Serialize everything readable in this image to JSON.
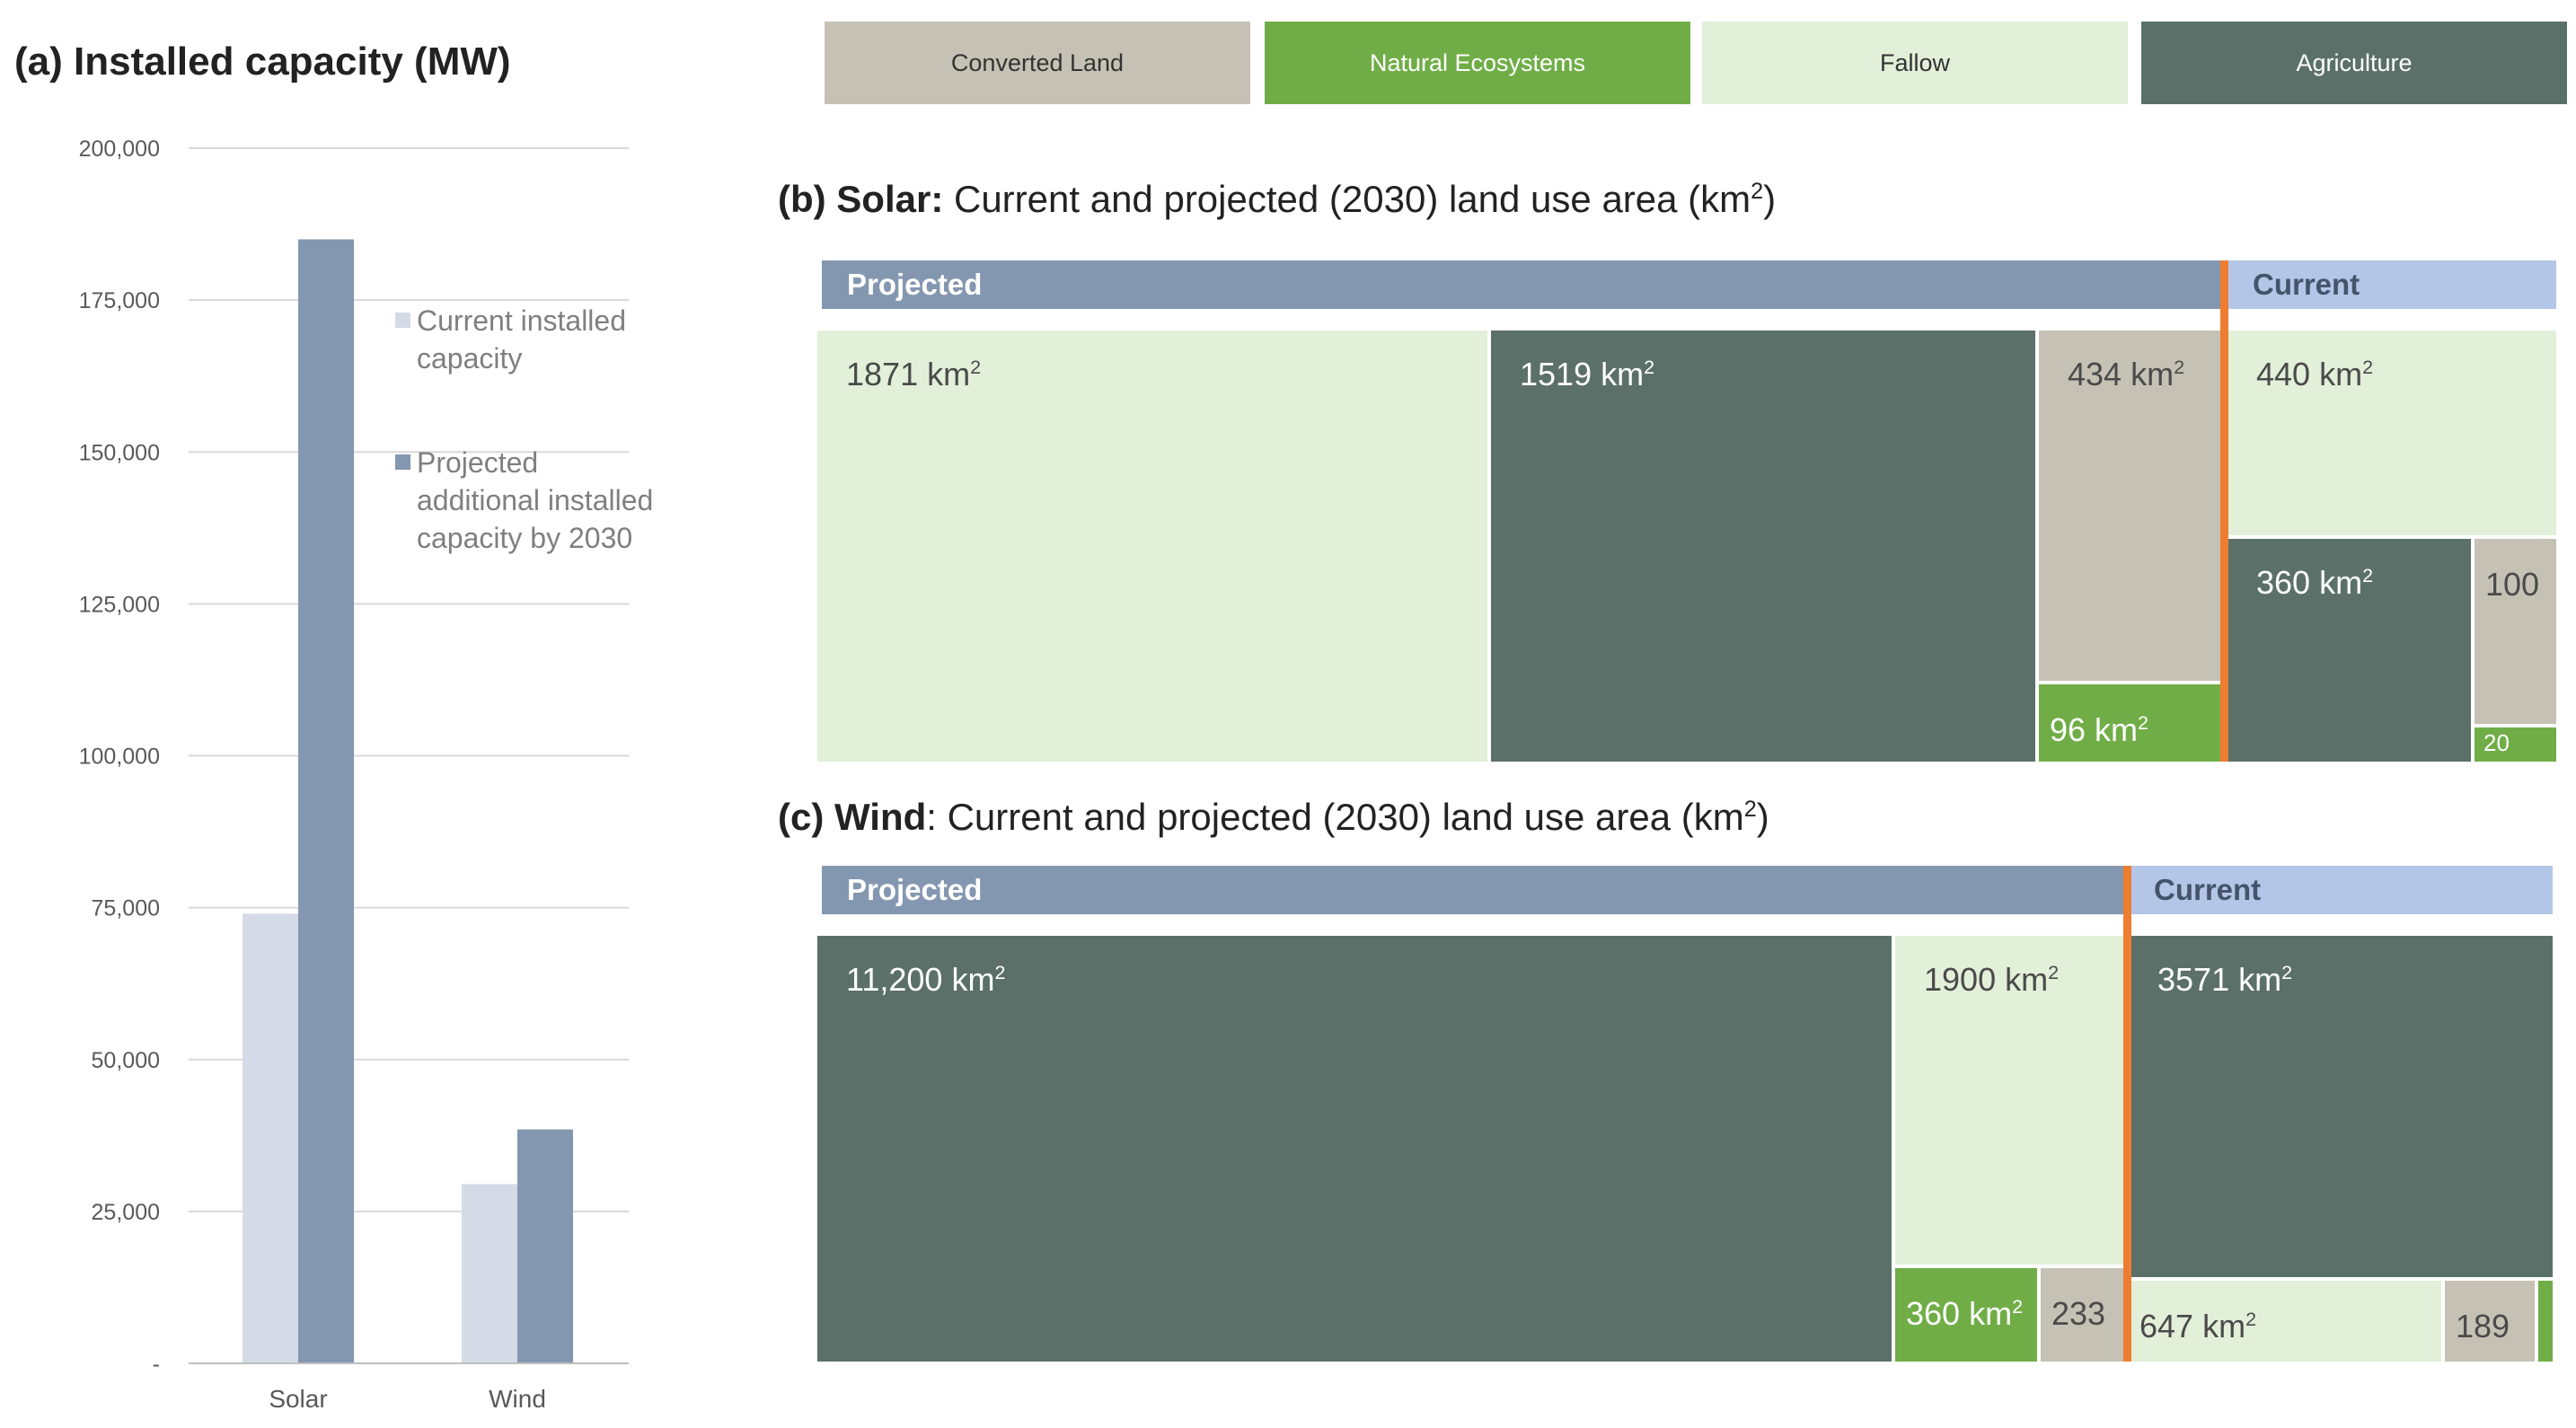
{
  "panel_a": {
    "title": "(a) Installed capacity (MW)"
  },
  "panel_b": {
    "title_bold": "(b) Solar:",
    "title_rest": " Current and projected (2030) land use area (km",
    "title_sup": "2",
    "title_end": ")"
  },
  "panel_c": {
    "title_bold": "(c) Wind",
    "title_rest": ": Current and projected (2030) land use area (km",
    "title_sup": "2",
    "title_end": ")"
  },
  "legend": [
    {
      "label": "Converted Land",
      "color": "#c5c2b5",
      "text_color": "#333333"
    },
    {
      "label": "Natural Ecosystems",
      "color": "#70ad47",
      "text_color": "#ffffff"
    },
    {
      "label": "Fallow",
      "color": "#e2efd9",
      "text_color": "#333333"
    },
    {
      "label": "Agriculture",
      "color": "#5b7069",
      "text_color": "#ffffff"
    }
  ],
  "headers": {
    "projected": "Projected",
    "current": "Current"
  },
  "chart_data": [
    {
      "type": "bar",
      "title": "(a) Installed capacity (MW)",
      "categories": [
        "Solar",
        "Wind"
      ],
      "series": [
        {
          "name": "Current installed capacity",
          "values": [
            74000,
            29500
          ],
          "color": "#d4dae6"
        },
        {
          "name": "Projected additional installed capacity by 2030",
          "values": [
            185000,
            38500
          ],
          "color": "#8497b0"
        }
      ],
      "ylim": [
        0,
        200000
      ],
      "yticks": [
        "-",
        "25,000",
        "50,000",
        "75,000",
        "100,000",
        "125,000",
        "150,000",
        "175,000",
        "200,000"
      ],
      "ytick_values": [
        0,
        25000,
        50000,
        75000,
        100000,
        125000,
        150000,
        175000,
        200000
      ],
      "legend_placement": "right",
      "grid": true
    },
    {
      "type": "treemap",
      "title": "(b) Solar: Current and projected (2030) land use area (km2)",
      "groups": [
        {
          "name": "Projected",
          "cells": [
            {
              "category": "Fallow",
              "value": 1871,
              "label": "1871 km",
              "sup": "2"
            },
            {
              "category": "Agriculture",
              "value": 1519,
              "label": "1519 km",
              "sup": "2"
            },
            {
              "category": "Converted Land",
              "value": 434,
              "label": "434 km",
              "sup": "2"
            },
            {
              "category": "Natural Ecosystems",
              "value": 96,
              "label": "96 km",
              "sup": "2"
            }
          ]
        },
        {
          "name": "Current",
          "cells": [
            {
              "category": "Fallow",
              "value": 440,
              "label": "440 km",
              "sup": "2"
            },
            {
              "category": "Agriculture",
              "value": 360,
              "label": "360 km",
              "sup": "2"
            },
            {
              "category": "Converted Land",
              "value": 100,
              "label": "100",
              "sup": ""
            },
            {
              "category": "Natural Ecosystems",
              "value": 20,
              "label": "20",
              "sup": ""
            }
          ]
        }
      ]
    },
    {
      "type": "treemap",
      "title": "(c) Wind: Current and projected (2030) land use area (km2)",
      "groups": [
        {
          "name": "Projected",
          "cells": [
            {
              "category": "Agriculture",
              "value": 11200,
              "label": "11,200 km",
              "sup": "2"
            },
            {
              "category": "Fallow",
              "value": 1900,
              "label": "1900 km",
              "sup": "2"
            },
            {
              "category": "Natural Ecosystems",
              "value": 360,
              "label": "360 km",
              "sup": "2"
            },
            {
              "category": "Converted Land",
              "value": 233,
              "label": "233",
              "sup": ""
            }
          ]
        },
        {
          "name": "Current",
          "cells": [
            {
              "category": "Agriculture",
              "value": 3571,
              "label": "3571 km",
              "sup": "2"
            },
            {
              "category": "Fallow",
              "value": 647,
              "label": "647 km",
              "sup": "2"
            },
            {
              "category": "Converted Land",
              "value": 189,
              "label": "189",
              "sup": ""
            },
            {
              "category": "Natural Ecosystems",
              "value": null,
              "label": "",
              "sup": ""
            }
          ]
        }
      ]
    }
  ]
}
